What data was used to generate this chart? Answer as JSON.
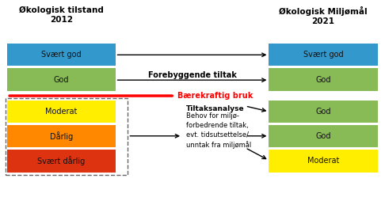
{
  "title_left": "Økologisk tilstand\n2012",
  "title_right": "Økologisk Miljømål\n2021",
  "left_boxes": [
    {
      "label": "Svært god",
      "color": "#3399CC"
    },
    {
      "label": "God",
      "color": "#88BB55"
    },
    {
      "label": "Moderat",
      "color": "#FFEE00"
    },
    {
      "label": "Dårlig",
      "color": "#FF8800"
    },
    {
      "label": "Svært dårlig",
      "color": "#DD3311"
    }
  ],
  "right_boxes": [
    {
      "label": "Svært god",
      "color": "#3399CC"
    },
    {
      "label": "God",
      "color": "#88BB55"
    },
    {
      "label": "God",
      "color": "#88BB55"
    },
    {
      "label": "God",
      "color": "#88BB55"
    },
    {
      "label": "Moderat",
      "color": "#FFEE00"
    }
  ],
  "bg_color": "#FFFFFF",
  "red_line_label": "Bærekraftig bruk",
  "forebyggende_label": "Forebyggende tiltak",
  "tiltaksanalyse_bold": "Tiltaksanalyse",
  "tiltaksanalyse_body": "Behov for miljø-\nforbedrende tiltak,\nevt. tidsutsettelse/\nunntak fra miljømål"
}
